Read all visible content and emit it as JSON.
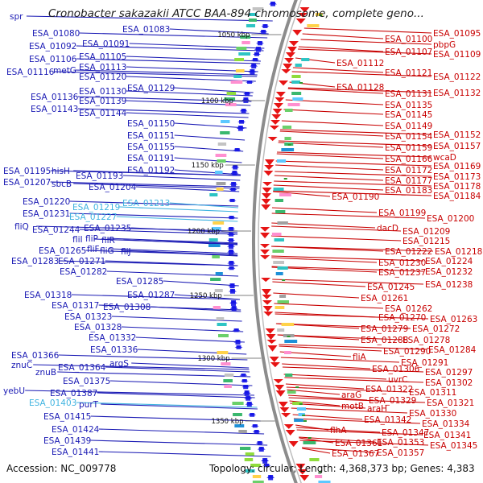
{
  "title": "Cronobacter sakazakii ATCC BAA-894 chromosome, complete geno...",
  "footer": {
    "accession": "Accession: NC_009778",
    "topology": "Topology: circular; Length: 4,368,373 bp; Genes: 4,383"
  },
  "colors": {
    "left_label": "#1a1ab4",
    "left_label_light": "#3fb3e0",
    "right_label": "#c80000",
    "forward_arrow": "#1414e6",
    "reverse_arrow": "#e61414",
    "backbone": "#8c8c8c"
  },
  "ticks": [
    {
      "label": "1050 kbp"
    },
    {
      "label": "1100 kbp"
    },
    {
      "label": "1150 kbp"
    },
    {
      "label": "1200 kbp"
    },
    {
      "label": "1250 kbp"
    },
    {
      "label": "1300 kbp"
    },
    {
      "label": "1350 kbp"
    }
  ],
  "left_labels": [
    {
      "text": "spr"
    },
    {
      "text": "ESA_01080"
    },
    {
      "text": "ESA_01083"
    },
    {
      "text": "ESA_01092"
    },
    {
      "text": "ESA_01091"
    },
    {
      "text": "ESA_01106"
    },
    {
      "text": "ESA_01105"
    },
    {
      "text": "ESA_01113"
    },
    {
      "text": "ESA_01116"
    },
    {
      "text": "metG"
    },
    {
      "text": "ESA_01120"
    },
    {
      "text": "ESA_01130"
    },
    {
      "text": "ESA_01129"
    },
    {
      "text": "ESA_01136"
    },
    {
      "text": "ESA_01139"
    },
    {
      "text": "ESA_01143"
    },
    {
      "text": "ESA_01144"
    },
    {
      "text": "ESA_01150"
    },
    {
      "text": "ESA_01151"
    },
    {
      "text": "ESA_01155"
    },
    {
      "text": "ESA_01191"
    },
    {
      "text": "ESA_01192"
    },
    {
      "text": "ESA_01195"
    },
    {
      "text": "hisH"
    },
    {
      "text": "ESA_01193"
    },
    {
      "text": "ESA_01207"
    },
    {
      "text": "sbcB"
    },
    {
      "text": "ESA_01204"
    },
    {
      "text": "ESA_01220"
    },
    {
      "text": "ESA_01219"
    },
    {
      "text": "ESA_01213"
    },
    {
      "text": "ESA_01231"
    },
    {
      "text": "ESA_01227"
    },
    {
      "text": "fliQ"
    },
    {
      "text": "ESA_01235"
    },
    {
      "text": "ESA_01244"
    },
    {
      "text": "fliI"
    },
    {
      "text": "fliP"
    },
    {
      "text": "fliR"
    },
    {
      "text": "ESA_01265"
    },
    {
      "text": "fliF"
    },
    {
      "text": "fliG"
    },
    {
      "text": "fliJ"
    },
    {
      "text": "ESA_01283"
    },
    {
      "text": "ESA_01271"
    },
    {
      "text": "ESA_01282"
    },
    {
      "text": "ESA_01285"
    },
    {
      "text": "ESA_01318"
    },
    {
      "text": "ESA_01287"
    },
    {
      "text": "ESA_01317"
    },
    {
      "text": "ESA_01308"
    },
    {
      "text": "ESA_01323"
    },
    {
      "text": "ESA_01328"
    },
    {
      "text": "ESA_01332"
    },
    {
      "text": "ESA_01336"
    },
    {
      "text": "ESA_01366"
    },
    {
      "text": "argS"
    },
    {
      "text": "znuC"
    },
    {
      "text": "ESA_01364"
    },
    {
      "text": "znuB"
    },
    {
      "text": "ESA_01375"
    },
    {
      "text": "yebU"
    },
    {
      "text": "ESA_01387"
    },
    {
      "text": "ESA_01403"
    },
    {
      "text": "purT"
    },
    {
      "text": "ESA_01415"
    },
    {
      "text": "ESA_01424"
    },
    {
      "text": "ESA_01439"
    },
    {
      "text": "ESA_01441"
    }
  ],
  "right_labels": [
    {
      "text": "ESA_01095"
    },
    {
      "text": "ESA_01100"
    },
    {
      "text": "pbpG"
    },
    {
      "text": "ESA_01107"
    },
    {
      "text": "ESA_01109"
    },
    {
      "text": "ESA_01112"
    },
    {
      "text": "ESA_01121"
    },
    {
      "text": "ESA_01122"
    },
    {
      "text": "ESA_01128"
    },
    {
      "text": "ESA_01131"
    },
    {
      "text": "ESA_01132"
    },
    {
      "text": "ESA_01135"
    },
    {
      "text": "ESA_01145"
    },
    {
      "text": "ESA_01149"
    },
    {
      "text": "ESA_01154"
    },
    {
      "text": "ESA_01152"
    },
    {
      "text": "ESA_01159"
    },
    {
      "text": "ESA_01157"
    },
    {
      "text": "ESA_01166"
    },
    {
      "text": "wcaD"
    },
    {
      "text": "ESA_01172"
    },
    {
      "text": "ESA_01169"
    },
    {
      "text": "ESA_01177"
    },
    {
      "text": "ESA_01173"
    },
    {
      "text": "ESA_01183"
    },
    {
      "text": "ESA_01178"
    },
    {
      "text": "ESA_01190"
    },
    {
      "text": "ESA_01184"
    },
    {
      "text": "ESA_01199"
    },
    {
      "text": "ESA_01200"
    },
    {
      "text": "dacD"
    },
    {
      "text": "ESA_01209"
    },
    {
      "text": "ESA_01215"
    },
    {
      "text": "ESA_01222"
    },
    {
      "text": "ESA_01218"
    },
    {
      "text": "ESA_01230"
    },
    {
      "text": "ESA_01224"
    },
    {
      "text": "ESA_01237"
    },
    {
      "text": "ESA_01232"
    },
    {
      "text": "ESA_01238"
    },
    {
      "text": "ESA_01245"
    },
    {
      "text": "ESA_01261"
    },
    {
      "text": "ESA_01262"
    },
    {
      "text": "ESA_01263"
    },
    {
      "text": "ESA_01270"
    },
    {
      "text": "ESA_01279"
    },
    {
      "text": "ESA_01272"
    },
    {
      "text": "ESA_01288"
    },
    {
      "text": "ESA_01278"
    },
    {
      "text": "ESA_01290"
    },
    {
      "text": "ESA_01284"
    },
    {
      "text": "fliA"
    },
    {
      "text": "ESA_01291"
    },
    {
      "text": "ESA_01306"
    },
    {
      "text": "ESA_01297"
    },
    {
      "text": "uvrC"
    },
    {
      "text": "ESA_01302"
    },
    {
      "text": "ESA_01322"
    },
    {
      "text": "ESA_01311"
    },
    {
      "text": "araG"
    },
    {
      "text": "ESA_01329"
    },
    {
      "text": "ESA_01321"
    },
    {
      "text": "motB"
    },
    {
      "text": "araH"
    },
    {
      "text": "ESA_01330"
    },
    {
      "text": "ESA_01342"
    },
    {
      "text": "ESA_01334"
    },
    {
      "text": "ESA_01341"
    },
    {
      "text": "flhA"
    },
    {
      "text": "ESA_01347"
    },
    {
      "text": "ESA_01353"
    },
    {
      "text": "ESA_01345"
    },
    {
      "text": "ESA_01361"
    },
    {
      "text": "ESA_01357"
    },
    {
      "text": "ESA_01367"
    }
  ]
}
